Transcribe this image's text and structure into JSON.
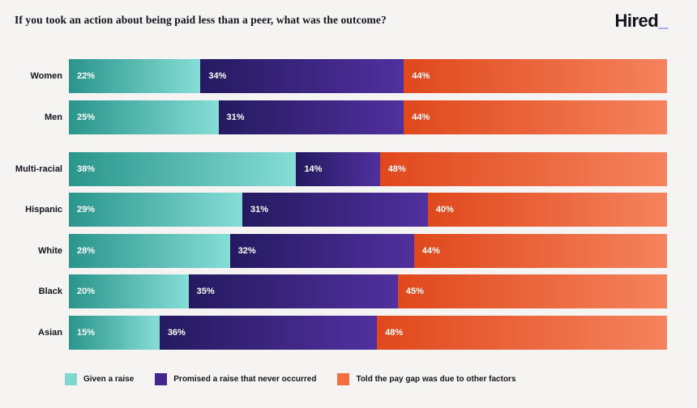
{
  "title": "If you took an action about being paid less than a peer, what was the outcome?",
  "logo": {
    "text": "Hired",
    "underscore": "_",
    "underscore_color": "#5a4edd"
  },
  "colors": {
    "background": "#f5f4f2",
    "text": "#14121c",
    "bar_label_text": "#ffffff"
  },
  "chart_data": {
    "type": "bar",
    "orientation": "horizontal-stacked",
    "title": "If you took an action about being paid less than a peer, what was the outcome?",
    "value_suffix": "%",
    "categories": [
      "Women",
      "Men",
      "Multi-racial",
      "Hispanic",
      "White",
      "Black",
      "Asian"
    ],
    "group_break_before": "Multi-racial",
    "series": [
      {
        "name": "Given a raise",
        "values": [
          22,
          25,
          38,
          29,
          28,
          20,
          15
        ],
        "gradient": [
          "#2a958b",
          "#85ddd6"
        ]
      },
      {
        "name": "Promised a raise that never occurred",
        "values": [
          34,
          31,
          14,
          31,
          32,
          35,
          36
        ],
        "gradient": [
          "#251a60",
          "#50309e"
        ]
      },
      {
        "name": "Told the pay gap was due to other factors",
        "values": [
          44,
          44,
          48,
          40,
          44,
          45,
          48
        ],
        "gradient": [
          "#e0481c",
          "#f5835d"
        ]
      }
    ],
    "legend_position": "bottom",
    "grid": false,
    "xlim": [
      0,
      100
    ]
  },
  "legend": [
    {
      "label": "Given a raise",
      "color": "#7ed8d1"
    },
    {
      "label": "Promised a raise that never occurred",
      "color": "#44278e"
    },
    {
      "label": "Told the pay gap was due to other factors",
      "color": "#f2703f"
    }
  ]
}
